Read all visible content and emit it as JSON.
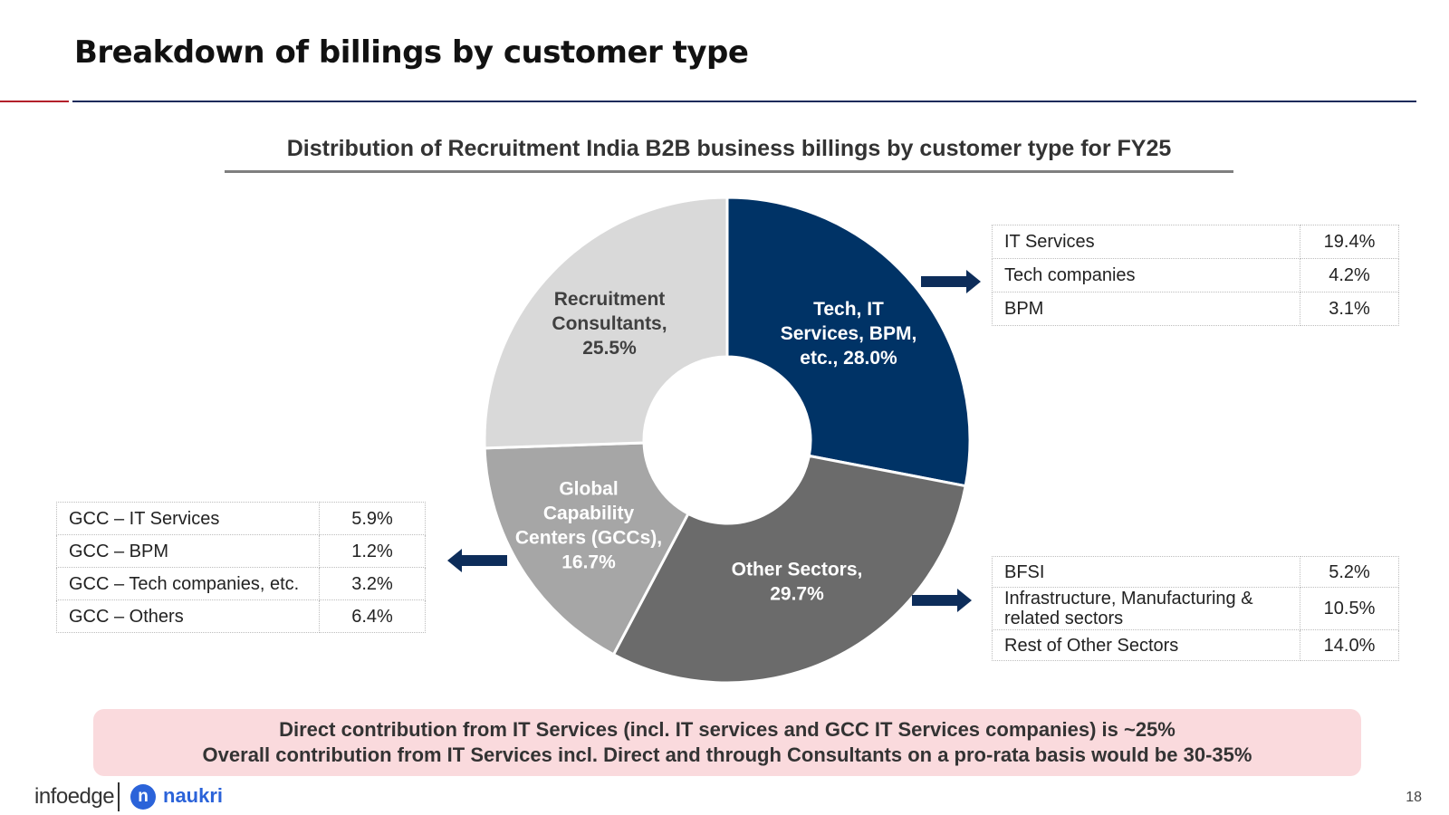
{
  "slide": {
    "title": "Breakdown of billings by customer type",
    "page_number": "18"
  },
  "chart_data": {
    "type": "pie",
    "title": "Distribution of Recruitment India B2B business billings by customer type for FY25",
    "donut": true,
    "slices": [
      {
        "name": "Tech, IT Services, BPM, etc.",
        "value": 28.0,
        "color": "#003366",
        "label_lines": [
          "Tech, IT",
          "Services, BPM,",
          "etc., 28.0%"
        ],
        "label_color": "#ffffff"
      },
      {
        "name": "Other Sectors",
        "value": 29.7,
        "color": "#6b6b6b",
        "label_lines": [
          "Other Sectors,",
          "29.7%"
        ],
        "label_color": "#ffffff"
      },
      {
        "name": "Global Capability Centers (GCCs)",
        "value": 16.7,
        "color": "#a6a6a6",
        "label_lines": [
          "Global",
          "Capability",
          "Centers (GCCs),",
          "16.7%"
        ],
        "label_color": "#ffffff"
      },
      {
        "name": "Recruitment Consultants",
        "value": 25.5,
        "color": "#d9d9d9",
        "label_lines": [
          "Recruitment",
          "Consultants,",
          "25.5%"
        ],
        "label_color": "#404040"
      }
    ]
  },
  "tables": {
    "tech": [
      {
        "label": "IT Services",
        "value": "19.4%"
      },
      {
        "label": "Tech companies",
        "value": "4.2%"
      },
      {
        "label": "BPM",
        "value": "3.1%"
      }
    ],
    "gcc": [
      {
        "label": "GCC – IT Services",
        "value": "5.9%"
      },
      {
        "label": "GCC – BPM",
        "value": "1.2%"
      },
      {
        "label": "GCC – Tech companies, etc.",
        "value": "3.2%"
      },
      {
        "label": "GCC – Others",
        "value": "6.4%"
      }
    ],
    "other": [
      {
        "label": "BFSI",
        "value": "5.2%"
      },
      {
        "label": "Infrastructure, Manufacturing & related sectors",
        "value": "10.5%"
      },
      {
        "label": "Rest of Other Sectors",
        "value": "14.0%"
      }
    ]
  },
  "callout": {
    "line1": "Direct contribution from IT Services (incl. IT services and GCC IT Services companies) is ~25%",
    "line2": "Overall contribution from IT Services incl. Direct and through Consultants on a pro-rata basis would be 30-35%"
  },
  "footer": {
    "logo_text": "infoedge",
    "brand_text": "naukri"
  },
  "colors": {
    "arrow": "#0d2d5a",
    "accent_red": "#b3202a",
    "accent_navy": "#1b2a5a"
  }
}
